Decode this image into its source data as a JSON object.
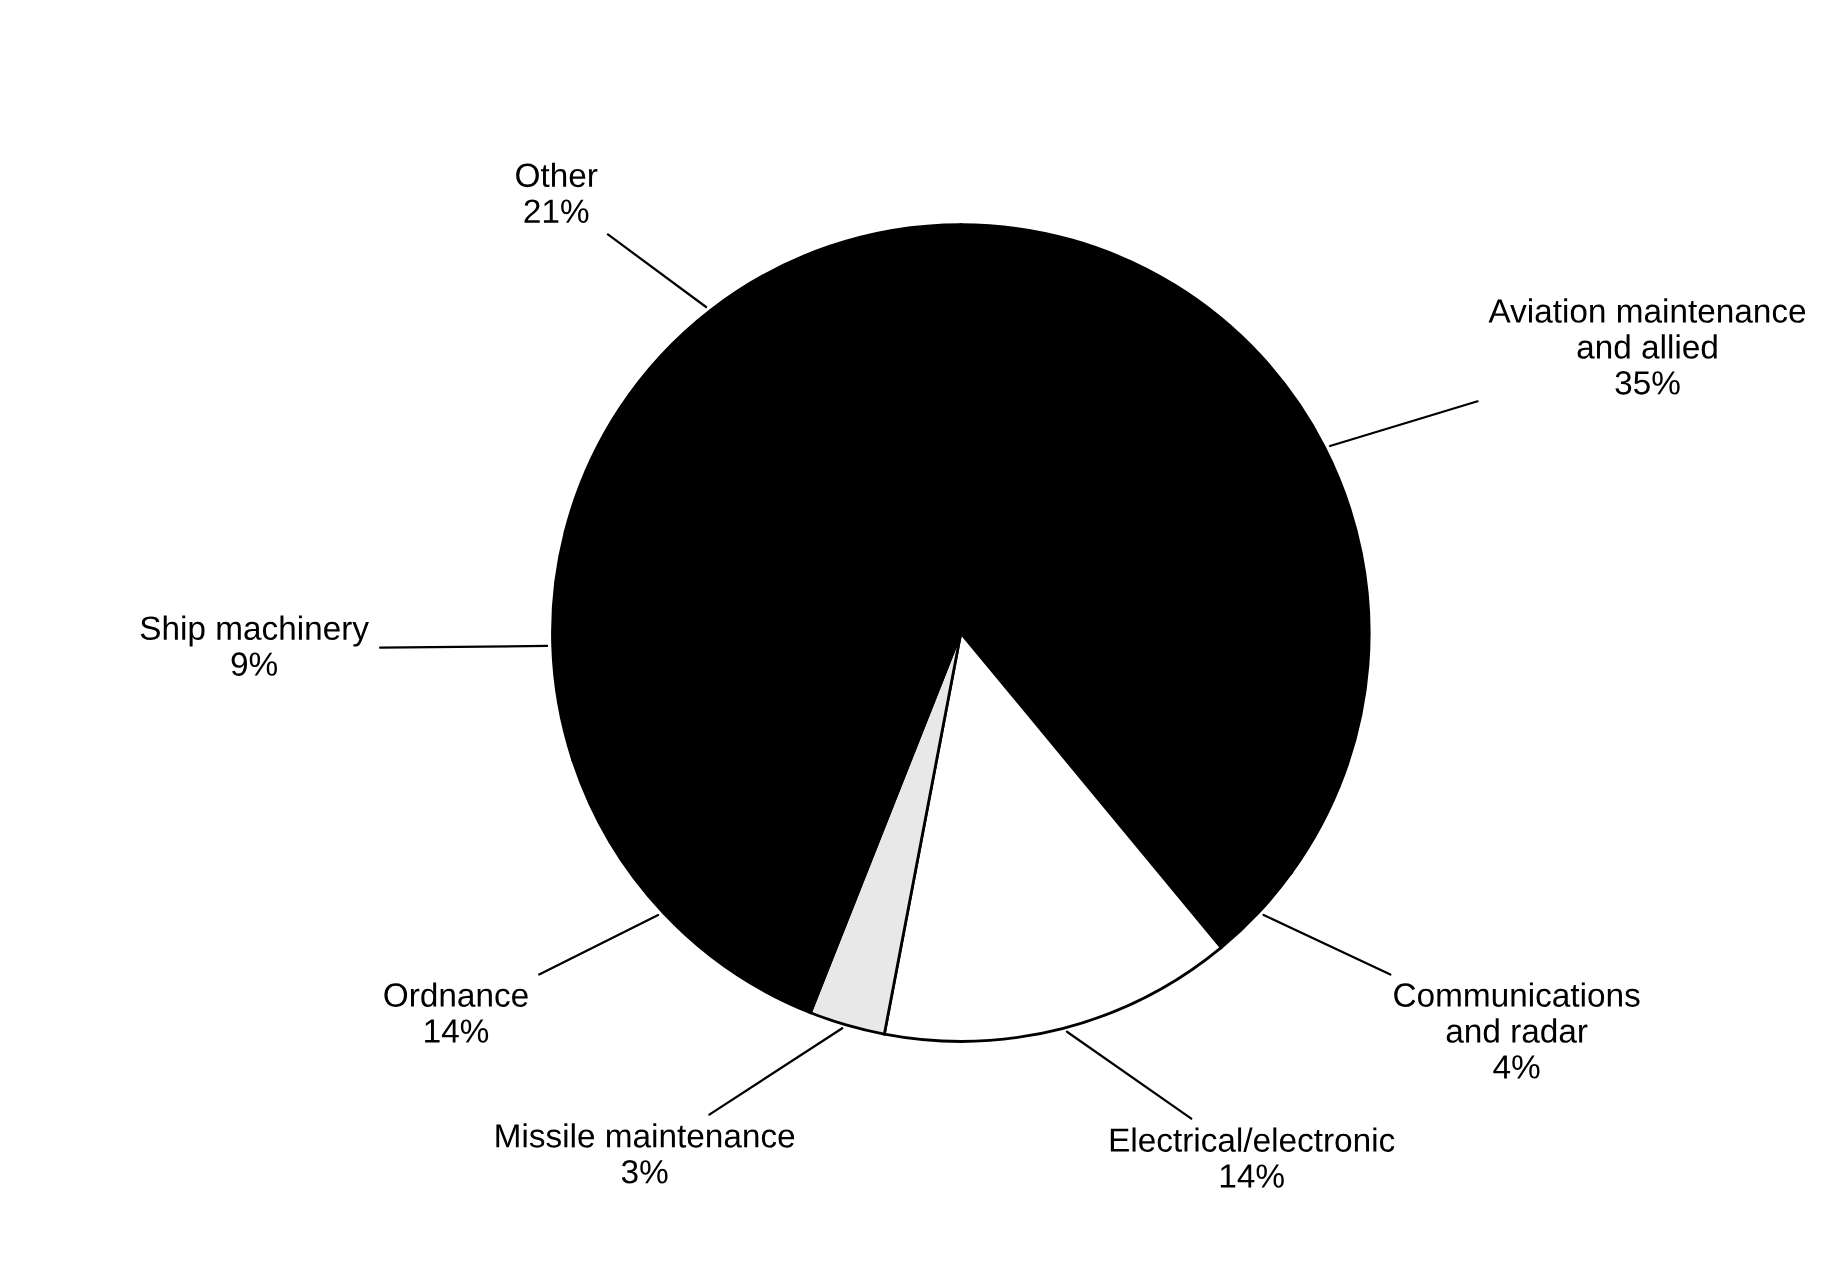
{
  "chart_data": {
    "type": "pie",
    "categories": [
      "Aviation maintenance and allied",
      "Communications and radar",
      "Electrical/electronic",
      "Missile maintenance",
      "Ordnance",
      "Ship machinery",
      "Other"
    ],
    "values": [
      35,
      4,
      14,
      3,
      14,
      9,
      21
    ],
    "colors": [
      "#000000",
      "#000000",
      "#ffffff",
      "#e8e8e8",
      "#000000",
      "#000000",
      "#000000"
    ],
    "value_labels": [
      "35%",
      "4%",
      "14%",
      "3%",
      "14%",
      "9%",
      "21%"
    ]
  }
}
